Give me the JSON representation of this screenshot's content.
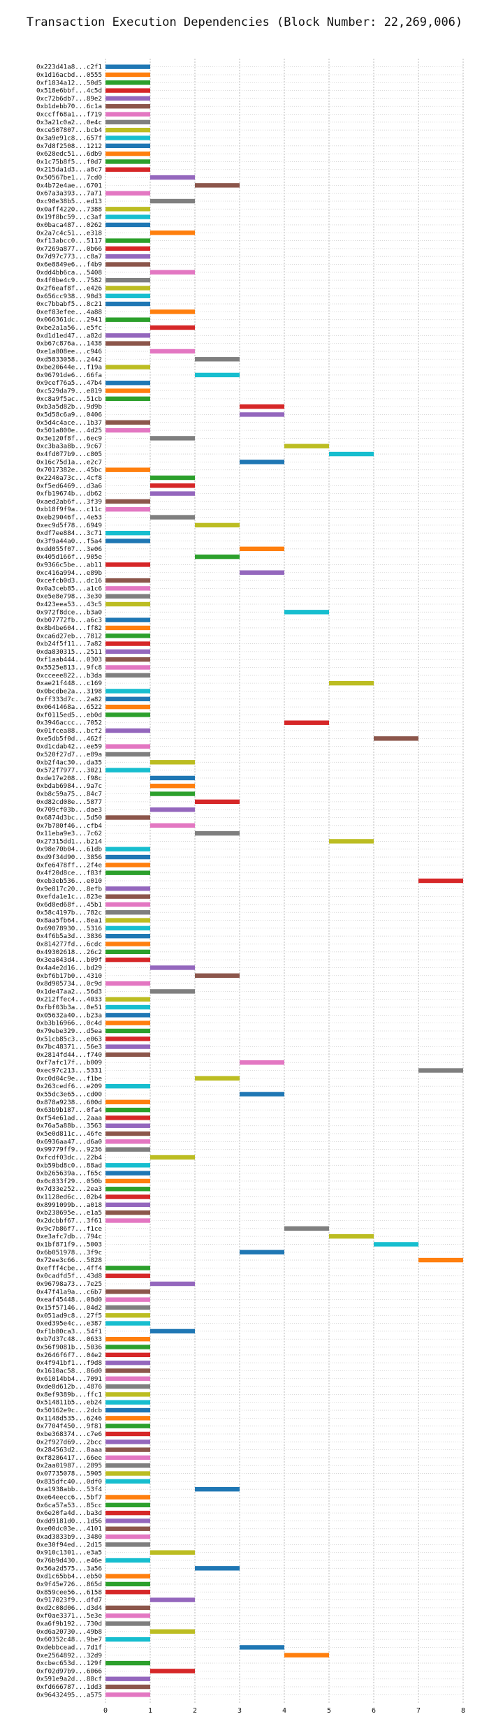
{
  "chart_data": {
    "type": "bar",
    "orientation": "horizontal",
    "title": "Transaction Execution Dependencies (Block Number: 22,269,006)",
    "xlabel": "",
    "ylabel": "",
    "xlim": [
      0,
      8
    ],
    "x_ticks": [
      0,
      1,
      2,
      3,
      4,
      5,
      6,
      7,
      8
    ],
    "grid": true,
    "legend": "none",
    "palette": [
      "#1f77b4",
      "#ff7f0e",
      "#2ca02c",
      "#d62728",
      "#9467bd",
      "#8c564b",
      "#e377c2",
      "#7f7f7f",
      "#bcbd22",
      "#17becf"
    ],
    "bars": [
      [
        "0x223d41a8...c2f1",
        0
      ],
      [
        "0x1d16acbd...0555",
        0
      ],
      [
        "0xf1834a12...50d5",
        0
      ],
      [
        "0x518e6bbf...4c5d",
        0
      ],
      [
        "0xc72b6db7...89e2",
        0
      ],
      [
        "0xb1debb70...6c1a",
        0
      ],
      [
        "0xccff68a1...f719",
        0
      ],
      [
        "0x3a21c0a2...0e4c",
        0
      ],
      [
        "0xce507807...bcb4",
        0
      ],
      [
        "0x3a9e91c8...657f",
        0
      ],
      [
        "0x7d8f2508...1212",
        0
      ],
      [
        "0x628edc51...6db9",
        0
      ],
      [
        "0x1c75b8f5...f0d7",
        0
      ],
      [
        "0x215da1d3...a8c7",
        0
      ],
      [
        "0x50567be1...7cd0",
        1
      ],
      [
        "0x4b72e4ae...6701",
        2
      ],
      [
        "0x67a3a393...7a71",
        0
      ],
      [
        "0xc98e38b5...ed13",
        1
      ],
      [
        "0x0aff4220...7388",
        0
      ],
      [
        "0x19f8bc59...c3af",
        0
      ],
      [
        "0x0baca487...0262",
        0
      ],
      [
        "0x2a7c4c51...e318",
        1
      ],
      [
        "0xf13abcc0...5117",
        0
      ],
      [
        "0x7269a877...0b66",
        0
      ],
      [
        "0x7d97c773...c8a7",
        0
      ],
      [
        "0x6e8849e6...f4b9",
        0
      ],
      [
        "0xdd4bb6ca...5408",
        1
      ],
      [
        "0x4f0be4c9...7582",
        0
      ],
      [
        "0x2f6eaf8f...e426",
        0
      ],
      [
        "0x656cc938...90d3",
        0
      ],
      [
        "0xc7bbabf5...8c21",
        0
      ],
      [
        "0xef83efee...4a88",
        1
      ],
      [
        "0x066361dc...2941",
        0
      ],
      [
        "0xbe2a1a56...e5fc",
        1
      ],
      [
        "0xd1d1ed47...a82d",
        0
      ],
      [
        "0xb67c876a...1438",
        0
      ],
      [
        "0xe1a808ee...c946",
        1
      ],
      [
        "0xd5833058...2442",
        2
      ],
      [
        "0xbe20644e...f19a",
        0
      ],
      [
        "0x96791de6...66fa",
        2
      ],
      [
        "0x9cef76a5...47b4",
        0
      ],
      [
        "0xc529da79...e819",
        0
      ],
      [
        "0xc8a9f5ac...51cb",
        0
      ],
      [
        "0xb3a5d82b...9d9b",
        3
      ],
      [
        "0x5d58c6a9...0406",
        3
      ],
      [
        "0x5d4c4ace...1b37",
        0
      ],
      [
        "0x501a800e...4d25",
        0
      ],
      [
        "0x3e120f8f...6ec9",
        1
      ],
      [
        "0xc3ba3a8b...9c67",
        4
      ],
      [
        "0x4fd077b9...c805",
        5
      ],
      [
        "0x16c75d1a...e2c7",
        3
      ],
      [
        "0x7017382e...45bc",
        0
      ],
      [
        "0x2240a73c...4cf8",
        1
      ],
      [
        "0xf5ed6469...d3a6",
        1
      ],
      [
        "0xfb19674b...db62",
        1
      ],
      [
        "0xaed2ab6f...3f39",
        0
      ],
      [
        "0xb18f9f9a...c11c",
        0
      ],
      [
        "0xeb29046f...4e53",
        1
      ],
      [
        "0xec9d5f78...6949",
        2
      ],
      [
        "0xdf7ee884...3c71",
        0
      ],
      [
        "0x3f9a44a0...f5a4",
        0
      ],
      [
        "0xdd055f07...3e06",
        3
      ],
      [
        "0x405d166f...905e",
        2
      ],
      [
        "0x9366c5be...ab11",
        0
      ],
      [
        "0xc416a994...e89b",
        3
      ],
      [
        "0xcefcb0d3...dc16",
        0
      ],
      [
        "0x0a3ceb85...a1c6",
        0
      ],
      [
        "0xe5e8e798...3e30",
        0
      ],
      [
        "0x423eea53...43c5",
        0
      ],
      [
        "0x972f8dce...b3a0",
        4
      ],
      [
        "0xb07772fb...a6c3",
        0
      ],
      [
        "0x8b4be604...ff82",
        0
      ],
      [
        "0xca6d27eb...7812",
        0
      ],
      [
        "0xb24f5f11...7a82",
        0
      ],
      [
        "0xda830315...2511",
        0
      ],
      [
        "0xf1aab444...0303",
        0
      ],
      [
        "0x5525e813...9fc8",
        0
      ],
      [
        "0xcceee822...b3da",
        0
      ],
      [
        "0xae21f448...c169",
        5
      ],
      [
        "0x0bcdbe2a...3198",
        0
      ],
      [
        "0xff333d7c...2a82",
        0
      ],
      [
        "0x0641468a...6522",
        0
      ],
      [
        "0xf0115ed5...eb0d",
        0
      ],
      [
        "0x3946accc...7052",
        4
      ],
      [
        "0x01fcea88...bcf2",
        0
      ],
      [
        "0xe5db5f0d...462f",
        6
      ],
      [
        "0xd1cdab42...ee59",
        0
      ],
      [
        "0x520f27d7...e89a",
        0
      ],
      [
        "0xb2f4ac30...da35",
        1
      ],
      [
        "0x572f7977...3021",
        0
      ],
      [
        "0xde17e208...f98c",
        1
      ],
      [
        "0xbdab6984...9a7c",
        1
      ],
      [
        "0xb8c59a75...84c7",
        1
      ],
      [
        "0xd82cd08e...5877",
        2
      ],
      [
        "0x709cf03b...dae3",
        1
      ],
      [
        "0x6874d3bc...5d50",
        0
      ],
      [
        "0x7b780f46...cfb4",
        1
      ],
      [
        "0x11eba9e3...7c62",
        2
      ],
      [
        "0x27315dd1...b214",
        5
      ],
      [
        "0x98e70b04...61db",
        0
      ],
      [
        "0xd9f34d90...3856",
        0
      ],
      [
        "0xfe6478ff...2f4e",
        0
      ],
      [
        "0x4f20d8ce...f83f",
        0
      ],
      [
        "0xeb3eb536...e010",
        7
      ],
      [
        "0x9e817c20...8efb",
        0
      ],
      [
        "0xefda1e1c...823e",
        0
      ],
      [
        "0x6d8ed68f...45b1",
        0
      ],
      [
        "0x58c4197b...782c",
        0
      ],
      [
        "0x8aa5fb64...8ea1",
        0
      ],
      [
        "0x69078930...5316",
        0
      ],
      [
        "0x4f6b5a3d...3836",
        0
      ],
      [
        "0x814277fd...6cdc",
        0
      ],
      [
        "0x49302618...26c2",
        0
      ],
      [
        "0x3ea043d4...b09f",
        0
      ],
      [
        "0x4a4e2d16...bd29",
        1
      ],
      [
        "0xbf6b17b0...4310",
        2
      ],
      [
        "0x8d905734...0c9d",
        0
      ],
      [
        "0x1de47aa2...56d3",
        1
      ],
      [
        "0x212ffec4...4033",
        0
      ],
      [
        "0xfbf03b3a...0e51",
        0
      ],
      [
        "0x05632a40...b23a",
        0
      ],
      [
        "0xb3b16966...0c4d",
        0
      ],
      [
        "0x79ebe329...d5ea",
        0
      ],
      [
        "0x51cb85c3...e063",
        0
      ],
      [
        "0x7bc48371...56e3",
        0
      ],
      [
        "0x2814fd44...f740",
        0
      ],
      [
        "0xf7afc17f...b009",
        3
      ],
      [
        "0xec97c213...5331",
        7
      ],
      [
        "0xc0d04c9e...f1be",
        2
      ],
      [
        "0x263cedf6...e209",
        0
      ],
      [
        "0x55dc3e65...cd00",
        3
      ],
      [
        "0x878a9238...600d",
        0
      ],
      [
        "0x63b9b187...0fa4",
        0
      ],
      [
        "0xf54e61ad...2aaa",
        0
      ],
      [
        "0x76a5a88b...3563",
        0
      ],
      [
        "0x5e0d811c...46fe",
        0
      ],
      [
        "0x6936aa47...d6a0",
        0
      ],
      [
        "0x99779ff9...9236",
        0
      ],
      [
        "0xfcdf03dc...22b4",
        1
      ],
      [
        "0xb59bd8c0...88ad",
        0
      ],
      [
        "0xb265639a...f65c",
        0
      ],
      [
        "0x0c833f29...050b",
        0
      ],
      [
        "0x7d33e252...2ea3",
        0
      ],
      [
        "0x1128ed6c...02b4",
        0
      ],
      [
        "0x8991099b...a018",
        0
      ],
      [
        "0xb238695e...e1a5",
        0
      ],
      [
        "0x2dcbbf67...3f61",
        0
      ],
      [
        "0x9c7b86f7...f1ce",
        4
      ],
      [
        "0xe3afc7db...794c",
        5
      ],
      [
        "0x1bf871f9...5003",
        6
      ],
      [
        "0x6b051978...3f9c",
        3
      ],
      [
        "0x72ee3c66...5828",
        7
      ],
      [
        "0xefff4cbe...4ff4",
        0
      ],
      [
        "0x0cadfd5f...43d8",
        0
      ],
      [
        "0x96798a73...7e25",
        1
      ],
      [
        "0x47f41a9a...c6b7",
        0
      ],
      [
        "0xeaf45448...08d0",
        0
      ],
      [
        "0x15f57146...04d2",
        0
      ],
      [
        "0x051ad9c8...27f5",
        0
      ],
      [
        "0xed395e4c...e387",
        0
      ],
      [
        "0xf1b80ca3...54f1",
        1
      ],
      [
        "0xb7d37c48...0633",
        0
      ],
      [
        "0x56f9081b...5036",
        0
      ],
      [
        "0x2646f6f7...04e2",
        0
      ],
      [
        "0x4f941bf1...f9d8",
        0
      ],
      [
        "0x1610ac58...86d0",
        0
      ],
      [
        "0x61014bb4...7091",
        0
      ],
      [
        "0xde8d612b...4876",
        0
      ],
      [
        "0x8ef9389b...ffc1",
        0
      ],
      [
        "0x514811b5...eb24",
        0
      ],
      [
        "0x50162e9c...2dcb",
        0
      ],
      [
        "0x1148d535...6246",
        0
      ],
      [
        "0x7704f450...9f81",
        0
      ],
      [
        "0xbe368374...c7e6",
        0
      ],
      [
        "0x2f927d69...2bcc",
        0
      ],
      [
        "0x284563d2...8aaa",
        0
      ],
      [
        "0xf8286417...66ee",
        0
      ],
      [
        "0x2aa01987...2895",
        0
      ],
      [
        "0x07735078...5905",
        0
      ],
      [
        "0x835dfc40...0df0",
        0
      ],
      [
        "0xa1938abb...53f4",
        2
      ],
      [
        "0xe64eecc6...5bf7",
        0
      ],
      [
        "0x6ca57a53...85cc",
        0
      ],
      [
        "0x6e20fa4d...ba3d",
        0
      ],
      [
        "0xdd9181d0...1d56",
        0
      ],
      [
        "0xe00dc03e...4101",
        0
      ],
      [
        "0xad3833b9...3480",
        0
      ],
      [
        "0xe30f94ed...2d15",
        0
      ],
      [
        "0x910c1301...e3a5",
        1
      ],
      [
        "0x76b9d430...e46e",
        0
      ],
      [
        "0x56a2d575...3a56",
        2
      ],
      [
        "0xd1c65bb4...eb50",
        0
      ],
      [
        "0x9f45e726...865d",
        0
      ],
      [
        "0x859cee56...6158",
        0
      ],
      [
        "0x917023f9...dfd7",
        1
      ],
      [
        "0xd2c08d06...d3d4",
        0
      ],
      [
        "0xf0ae3371...5e3e",
        0
      ],
      [
        "0xa6f9b192...730d",
        0
      ],
      [
        "0xd6a20730...49b8",
        1
      ],
      [
        "0x60352c48...9be7",
        0
      ],
      [
        "0xdebbcead...7d1f",
        3
      ],
      [
        "0xe2564892...32d9",
        4
      ],
      [
        "0xcbec653d...129f",
        0
      ],
      [
        "0xf02d97b9...6066",
        1
      ],
      [
        "0x591e9a2d...88cf",
        0
      ],
      [
        "0xfd666787...1dd3",
        0
      ],
      [
        "0x96432495...a575",
        0
      ]
    ]
  }
}
